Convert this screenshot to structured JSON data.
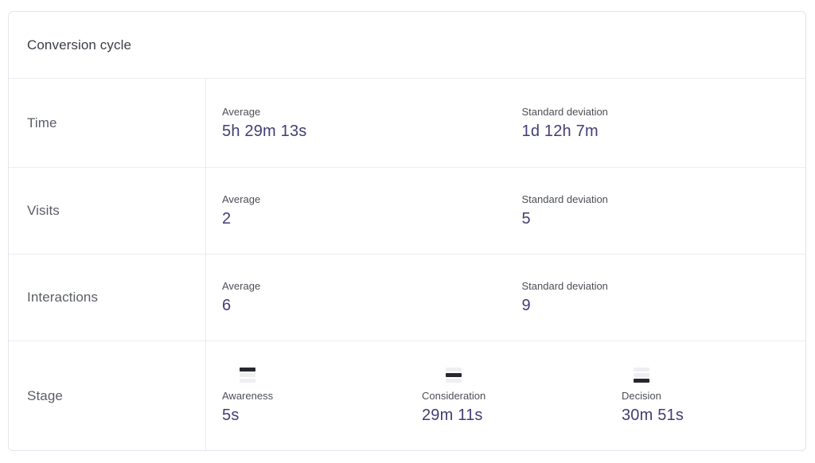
{
  "card": {
    "title": "Conversion cycle"
  },
  "rows": [
    {
      "label": "Time",
      "metrics": [
        {
          "label": "Average",
          "value": "5h 29m 13s"
        },
        {
          "label": "Standard deviation",
          "value": "1d 12h 7m"
        }
      ]
    },
    {
      "label": "Visits",
      "metrics": [
        {
          "label": "Average",
          "value": "2"
        },
        {
          "label": "Standard deviation",
          "value": "5"
        }
      ]
    },
    {
      "label": "Interactions",
      "metrics": [
        {
          "label": "Average",
          "value": "6"
        },
        {
          "label": "Standard deviation",
          "value": "9"
        }
      ]
    },
    {
      "label": "Stage",
      "stages": [
        {
          "label": "Awareness",
          "value": "5s",
          "icon": "funnel-stage-top-icon",
          "active_bar": 0
        },
        {
          "label": "Consideration",
          "value": "29m 11s",
          "icon": "funnel-stage-middle-icon",
          "active_bar": 1
        },
        {
          "label": "Decision",
          "value": "30m 51s",
          "icon": "funnel-stage-bottom-icon",
          "active_bar": 2
        }
      ]
    }
  ],
  "colors": {
    "value_accent": "#413e74",
    "funnel_bar_active": "#26282e",
    "funnel_bar_inactive": "#efeff2",
    "card_border": "#e3e4eb",
    "divider": "#ecedf1"
  }
}
